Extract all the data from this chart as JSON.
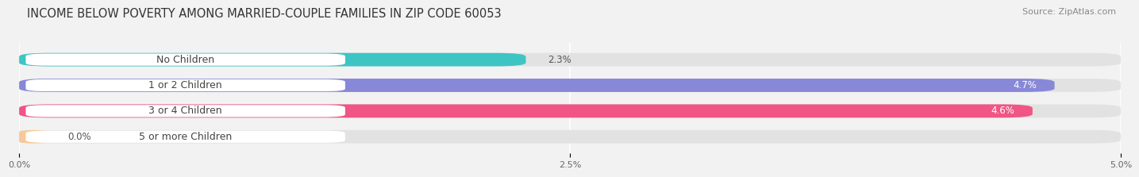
{
  "title": "INCOME BELOW POVERTY AMONG MARRIED-COUPLE FAMILIES IN ZIP CODE 60053",
  "source": "Source: ZipAtlas.com",
  "categories": [
    "No Children",
    "1 or 2 Children",
    "3 or 4 Children",
    "5 or more Children"
  ],
  "values": [
    2.3,
    4.7,
    4.6,
    0.0
  ],
  "bar_colors": [
    "#3fc4c4",
    "#8888d8",
    "#f05585",
    "#f8c898"
  ],
  "xlim": [
    0,
    5.0
  ],
  "xticks": [
    0.0,
    2.5,
    5.0
  ],
  "xtick_labels": [
    "0.0%",
    "2.5%",
    "5.0%"
  ],
  "title_fontsize": 10.5,
  "source_fontsize": 8,
  "label_fontsize": 9,
  "value_fontsize": 8.5,
  "background_color": "#f2f2f2",
  "bar_background_color": "#e2e2e2",
  "bar_height": 0.52,
  "pill_color": "#ffffff",
  "label_text_color": "#444444",
  "grid_color": "#ffffff"
}
